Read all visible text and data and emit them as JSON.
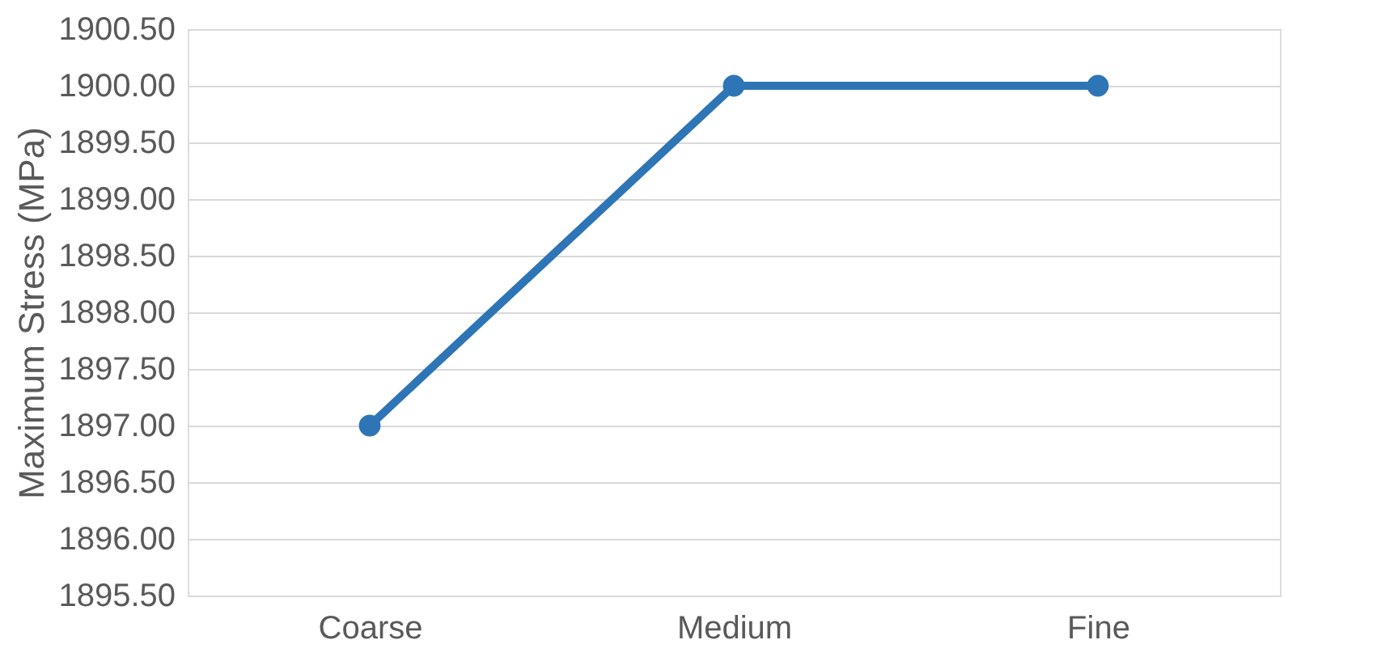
{
  "chart_data": {
    "type": "line",
    "ylabel": "Maximum Stress (MPa)",
    "categories": [
      "Coarse",
      "Medium",
      "Fine"
    ],
    "series": [
      {
        "color": "#2e75b6",
        "values": [
          1897,
          1900,
          1900
        ]
      }
    ],
    "ylim": [
      1895.5,
      1900.5
    ],
    "yticks": [
      {
        "value": 1895.5,
        "label": "1895.50"
      },
      {
        "value": 1896,
        "label": "1896.00"
      },
      {
        "value": 1896.5,
        "label": "1896.50"
      },
      {
        "value": 1897,
        "label": "1897.00"
      },
      {
        "value": 1897.5,
        "label": "1897.50"
      },
      {
        "value": 1898,
        "label": "1898.00"
      },
      {
        "value": 1898.5,
        "label": "1898.50"
      },
      {
        "value": 1899,
        "label": "1899.00"
      },
      {
        "value": 1899.5,
        "label": "1899.50"
      },
      {
        "value": 1900,
        "label": "1900.00"
      },
      {
        "value": 1900.5,
        "label": "1900.50"
      }
    ],
    "grid": "y",
    "marker": "circle",
    "line_style": "solid"
  }
}
